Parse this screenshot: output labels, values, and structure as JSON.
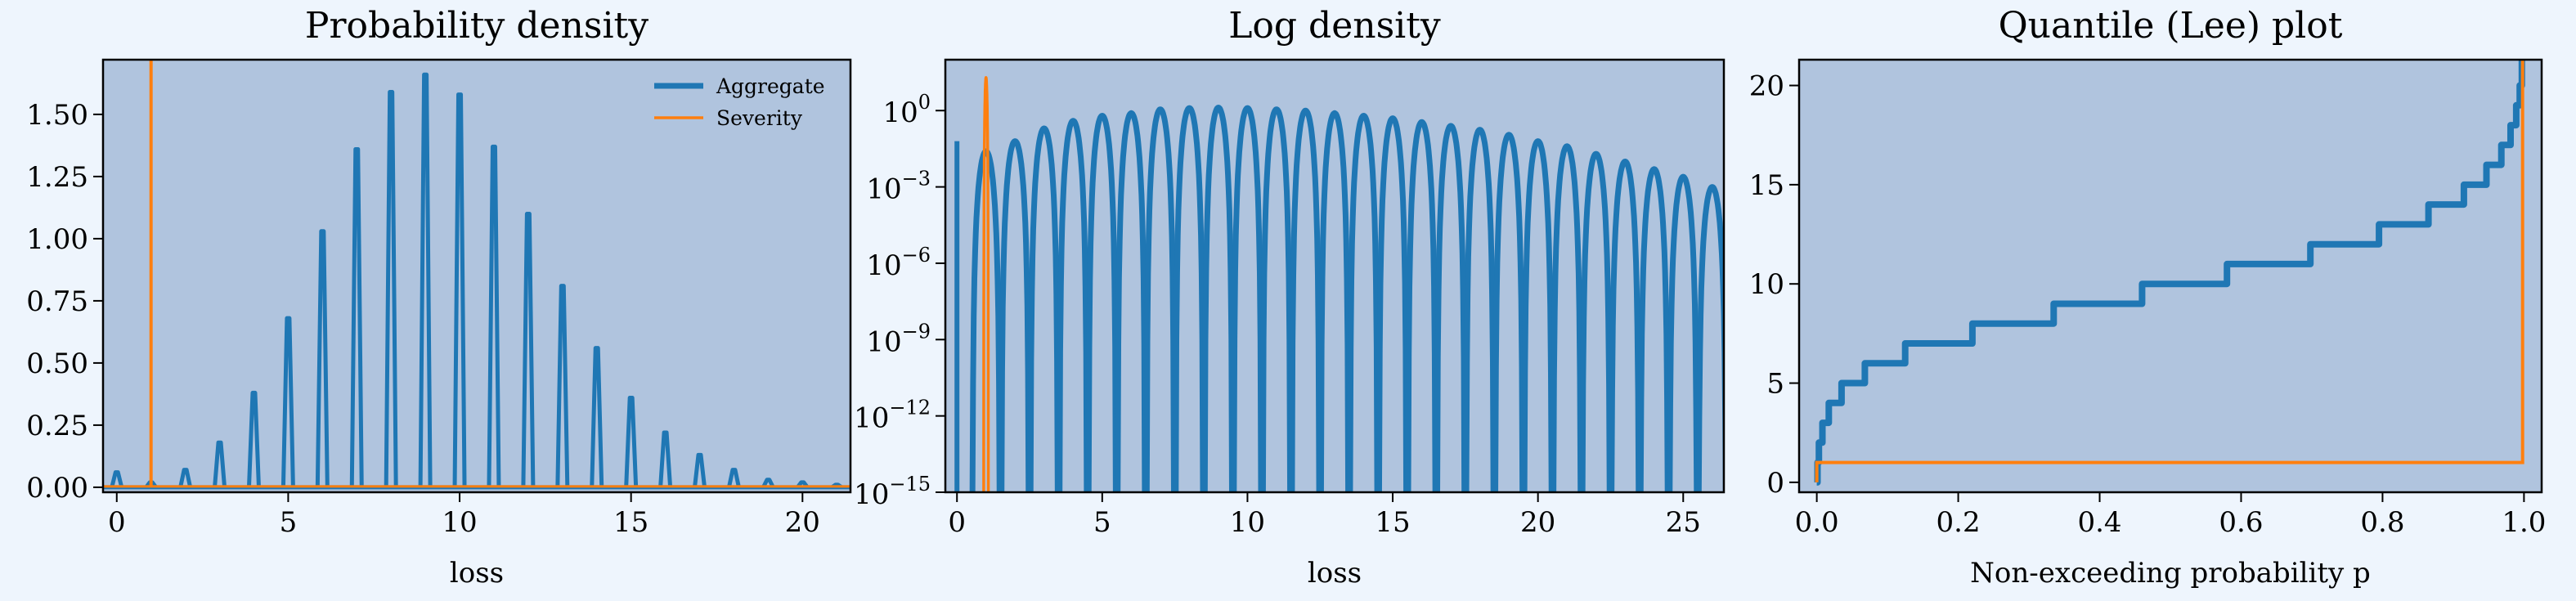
{
  "colors": {
    "page_bg": "#eef5fd",
    "axes_bg": "#b0c4de",
    "aggregate": "#1f77b4",
    "severity": "#ff7f0e"
  },
  "legend": {
    "placement": "top-right",
    "aggregate_label": "Aggregate",
    "severity_label": "Severity"
  },
  "chart_data": [
    {
      "type": "line",
      "title": "Probability density",
      "xlabel": "loss",
      "ylabel": "",
      "xlim": [
        -0.4,
        21.4
      ],
      "ylim": [
        -0.02,
        1.72
      ],
      "xticks": [
        0,
        5,
        10,
        15,
        20
      ],
      "xtick_labels": [
        "0",
        "5",
        "10",
        "15",
        "20"
      ],
      "yticks": [
        0,
        0.25,
        0.5,
        0.75,
        1.0,
        1.25,
        1.5
      ],
      "ytick_labels": [
        "0.00",
        "0.25",
        "0.50",
        "0.75",
        "1.00",
        "1.25",
        "1.50"
      ],
      "grid": false,
      "legend": "top-right",
      "series": [
        {
          "name": "Aggregate",
          "kind": "spikes",
          "x": [
            0,
            1,
            2,
            3,
            4,
            5,
            6,
            7,
            8,
            9,
            10,
            11,
            12,
            13,
            14,
            15,
            16,
            17,
            18,
            19,
            20,
            21
          ],
          "y": [
            0.06,
            0.02,
            0.07,
            0.18,
            0.38,
            0.68,
            1.03,
            1.36,
            1.59,
            1.66,
            1.58,
            1.37,
            1.1,
            0.81,
            0.56,
            0.36,
            0.22,
            0.13,
            0.07,
            0.03,
            0.02,
            0.01
          ]
        },
        {
          "name": "Severity",
          "kind": "spikes",
          "x": [
            1
          ],
          "y": [
            1.72
          ]
        }
      ]
    },
    {
      "type": "line",
      "title": "Log density",
      "xlabel": "loss",
      "ylabel": "",
      "yscale": "log",
      "xlim": [
        -0.4,
        26.4
      ],
      "ylim_exp": [
        -15,
        2
      ],
      "xticks": [
        0,
        5,
        10,
        15,
        20,
        25
      ],
      "xtick_labels": [
        "0",
        "5",
        "10",
        "15",
        "20",
        "25"
      ],
      "ytick_exps": [
        0,
        -3,
        -6,
        -9,
        -12,
        -15
      ],
      "ytick_labels": [
        "10",
        "10",
        "10",
        "10",
        "10",
        "10"
      ],
      "ytick_sups": [
        "0",
        "−3",
        "−6",
        "−9",
        "−12",
        "−15"
      ],
      "grid": false,
      "series": [
        {
          "name": "Aggregate",
          "kind": "log-arches",
          "x": [
            0,
            1,
            2,
            3,
            4,
            5,
            6,
            7,
            8,
            9,
            10,
            11,
            12,
            13,
            14,
            15,
            16,
            17,
            18,
            19,
            20,
            21,
            22,
            23,
            24,
            25,
            26
          ],
          "y_exp": [
            -1.2,
            -1.6,
            -1.2,
            -0.7,
            -0.4,
            -0.2,
            -0.1,
            0.05,
            0.1,
            0.12,
            0.1,
            0.05,
            0.0,
            -0.1,
            -0.2,
            -0.3,
            -0.45,
            -0.6,
            -0.75,
            -0.95,
            -1.2,
            -1.4,
            -1.7,
            -2.0,
            -2.3,
            -2.6,
            -3.0
          ]
        },
        {
          "name": "Severity",
          "kind": "log-arches",
          "x": [
            1
          ],
          "y_exp": [
            1.3
          ]
        }
      ]
    },
    {
      "type": "line",
      "title": "Quantile (Lee) plot",
      "xlabel": "Non-exceeding probability p",
      "ylabel": "",
      "xlim": [
        -0.025,
        1.025
      ],
      "ylim": [
        -0.5,
        21.3
      ],
      "xticks": [
        0,
        0.2,
        0.4,
        0.6,
        0.8,
        1.0
      ],
      "xtick_labels": [
        "0.0",
        "0.2",
        "0.4",
        "0.6",
        "0.8",
        "1.0"
      ],
      "yticks": [
        0,
        5,
        10,
        15,
        20
      ],
      "ytick_labels": [
        "0",
        "5",
        "10",
        "15",
        "20"
      ],
      "grid": false,
      "series": [
        {
          "name": "Aggregate",
          "kind": "step",
          "p": [
            0.001,
            0.003,
            0.008,
            0.017,
            0.035,
            0.068,
            0.125,
            0.22,
            0.335,
            0.46,
            0.58,
            0.698,
            0.795,
            0.865,
            0.915,
            0.947,
            0.968,
            0.981,
            0.989,
            0.994,
            0.997,
            1.0
          ],
          "q": [
            0,
            1,
            2,
            3,
            4,
            5,
            6,
            7,
            8,
            9,
            10,
            11,
            12,
            13,
            14,
            15,
            16,
            17,
            18,
            19,
            20,
            22
          ]
        },
        {
          "name": "Severity",
          "kind": "step",
          "p": [
            0.0,
            0.998,
            1.0
          ],
          "q": [
            0,
            1,
            22
          ]
        }
      ]
    }
  ]
}
